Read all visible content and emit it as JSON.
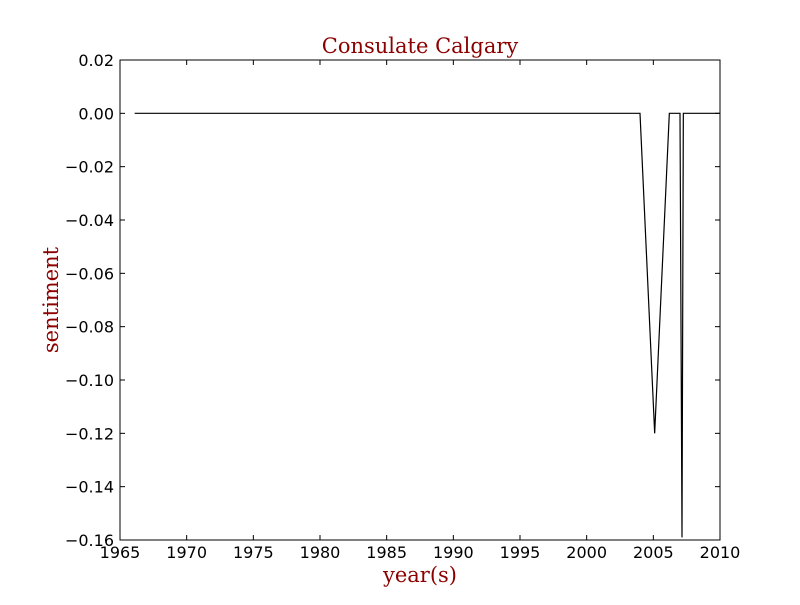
{
  "colors": {
    "title": "#8b0000",
    "axis_label": "#8b0000",
    "line": "#000000",
    "frame": "#000000",
    "background": "#ffffff"
  },
  "chart_data": {
    "type": "line",
    "title": "Consulate Calgary",
    "xlabel": "year(s)",
    "ylabel": "sentiment",
    "xlim": [
      1965,
      2010
    ],
    "ylim": [
      -0.16,
      0.02
    ],
    "xticks": [
      1965,
      1970,
      1975,
      1980,
      1985,
      1990,
      1995,
      2000,
      2005,
      2010
    ],
    "xtick_labels": [
      "1965",
      "1970",
      "1975",
      "1980",
      "1985",
      "1990",
      "1995",
      "2000",
      "2005",
      "2010"
    ],
    "yticks": [
      0.02,
      0.0,
      -0.02,
      -0.04,
      -0.06,
      -0.08,
      -0.1,
      -0.12,
      -0.14,
      -0.16
    ],
    "ytick_labels": [
      "0.02",
      "0.00",
      "−0.02",
      "−0.04",
      "−0.06",
      "−0.08",
      "−0.10",
      "−0.12",
      "−0.14",
      "−0.16"
    ],
    "grid": false,
    "series": [
      {
        "x": [
          1966.1,
          2004.0,
          2005.1,
          2006.2,
          2007.0,
          2007.15,
          2007.25,
          2009.5,
          2010.0
        ],
        "y": [
          0.0,
          0.0,
          -0.12,
          0.0,
          0.0,
          -0.159,
          0.0,
          0.0,
          0.0
        ]
      }
    ]
  }
}
